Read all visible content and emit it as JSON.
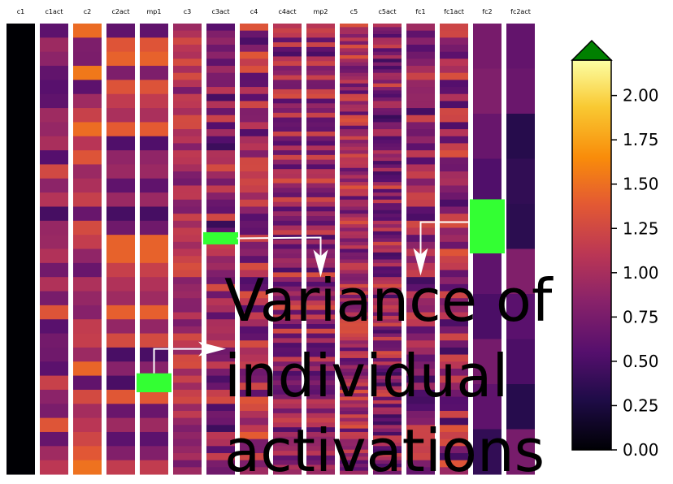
{
  "chart_data": {
    "type": "heatmap",
    "title": "",
    "colormap": "inferno",
    "columns": [
      {
        "label": "c1",
        "rows": 1,
        "seed": 0,
        "mean": 0.0,
        "spread": 0.0
      },
      {
        "label": "c1act",
        "rows": 32,
        "seed": 11,
        "mean": 0.92,
        "spread": 0.45
      },
      {
        "label": "c2",
        "rows": 32,
        "seed": 23,
        "mean": 1.05,
        "spread": 0.5
      },
      {
        "label": "c2act",
        "rows": 32,
        "seed": 37,
        "mean": 0.95,
        "spread": 0.5
      },
      {
        "label": "mp1",
        "rows": 32,
        "seed": 37,
        "mean": 0.95,
        "spread": 0.5
      },
      {
        "label": "c3",
        "rows": 64,
        "seed": 51,
        "mean": 1.0,
        "spread": 0.3
      },
      {
        "label": "c3act",
        "rows": 64,
        "seed": 63,
        "mean": 0.85,
        "spread": 0.45
      },
      {
        "label": "c4",
        "rows": 64,
        "seed": 71,
        "mean": 0.95,
        "spread": 0.45
      },
      {
        "label": "c4act",
        "rows": 96,
        "seed": 83,
        "mean": 0.9,
        "spread": 0.4
      },
      {
        "label": "mp2",
        "rows": 96,
        "seed": 83,
        "mean": 0.9,
        "spread": 0.4
      },
      {
        "label": "c5",
        "rows": 128,
        "seed": 97,
        "mean": 0.95,
        "spread": 0.4
      },
      {
        "label": "c5act",
        "rows": 128,
        "seed": 109,
        "mean": 0.85,
        "spread": 0.45
      },
      {
        "label": "fc1",
        "rows": 64,
        "seed": 113,
        "mean": 0.85,
        "spread": 0.4
      },
      {
        "label": "fc1act",
        "rows": 64,
        "seed": 127,
        "mean": 0.9,
        "spread": 0.45
      },
      {
        "label": "fc2",
        "rows": 10,
        "seed": 131,
        "mean": 0.62,
        "spread": 0.25
      },
      {
        "label": "fc2act",
        "rows": 10,
        "seed": 139,
        "mean": 0.55,
        "spread": 0.25
      }
    ],
    "colorbar": {
      "min": 0.0,
      "max": 2.2,
      "ticks": [
        "0.00",
        "0.25",
        "0.50",
        "0.75",
        "1.00",
        "1.25",
        "1.50",
        "1.75",
        "2.00"
      ],
      "tick_values": [
        0.0,
        0.25,
        0.5,
        0.75,
        1.0,
        1.25,
        1.5,
        1.75,
        2.0
      ],
      "extend": "max",
      "extend_color": "#008000"
    },
    "highlight_color": "#33ff33",
    "highlights": [
      {
        "column": "mp1",
        "row_from": 0.776,
        "row_to": 0.818
      },
      {
        "column": "c3act",
        "row_from": 0.463,
        "row_to": 0.49
      },
      {
        "column": "fc2",
        "row_from": 0.39,
        "row_to": 0.51
      }
    ],
    "arrows": [
      {
        "from_column": "mp1",
        "to_column": "c3act"
      },
      {
        "from_column": "c3act",
        "to_column": "mp2"
      },
      {
        "from_column": "fc2",
        "to_column": "fc1"
      }
    ],
    "annotation": [
      "Variance of",
      "individual",
      "activations"
    ]
  }
}
